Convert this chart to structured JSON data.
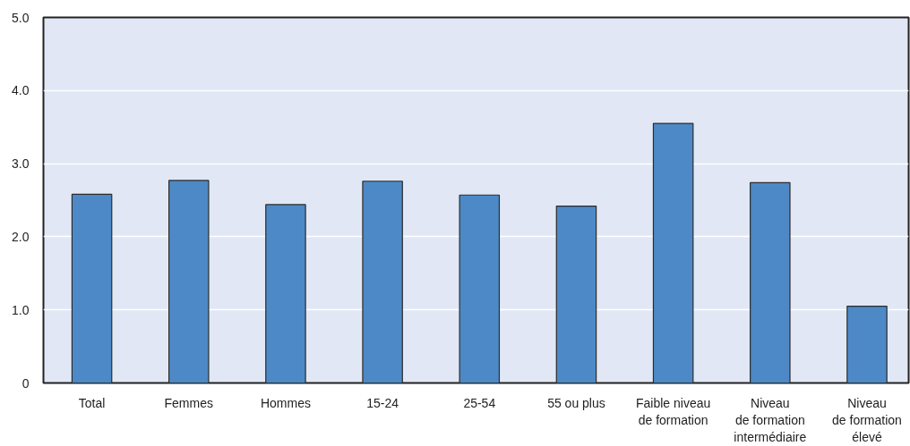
{
  "chart_data": {
    "type": "bar",
    "categories": [
      "Total",
      "Femmes",
      "Hommes",
      "15-24",
      "25-54",
      "55 ou plus",
      "Faible niveau\nde formation",
      "Niveau\nde formation\nintermédiaire",
      "Niveau\nde formation\nélevé"
    ],
    "values": [
      2.58,
      2.77,
      2.44,
      2.76,
      2.57,
      2.42,
      3.55,
      2.74,
      1.05
    ],
    "color": "#4d89c6",
    "ylim": [
      0,
      5.0
    ],
    "yticks": [
      0,
      {
        "value": 1,
        "label": "1.0"
      },
      {
        "value": 2,
        "label": "2.0"
      },
      {
        "value": 3,
        "label": "3.0"
      },
      {
        "value": 4,
        "label": "4.0"
      },
      {
        "value": 5,
        "label": "5.0"
      }
    ],
    "grid": "y"
  }
}
